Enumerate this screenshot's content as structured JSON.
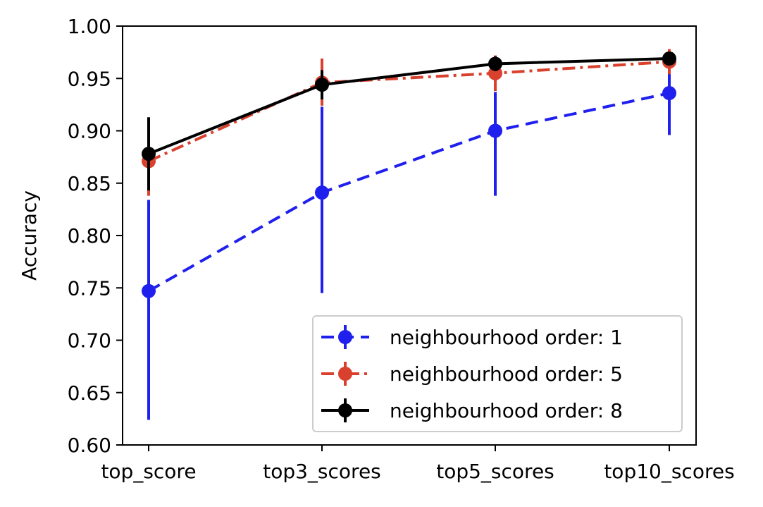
{
  "chart_data": {
    "type": "line",
    "title": "",
    "xlabel": "",
    "ylabel": "Accuracy",
    "categories": [
      "top_score",
      "top3_scores",
      "top5_scores",
      "top10_scores"
    ],
    "ylim": [
      0.6,
      1.0
    ],
    "yticks": [
      "0.60",
      "0.65",
      "0.70",
      "0.75",
      "0.80",
      "0.85",
      "0.90",
      "0.95",
      "1.00"
    ],
    "grid": false,
    "legend_position": "lower-right",
    "series": [
      {
        "name": "neighbourhood order: 1",
        "color": "#1f1fee",
        "linestyle": "dashed",
        "values": [
          0.747,
          0.841,
          0.9,
          0.936
        ],
        "err_low": [
          0.624,
          0.745,
          0.838,
          0.896
        ],
        "err_high": [
          0.834,
          0.923,
          0.937,
          0.956
        ]
      },
      {
        "name": "neighbourhood order: 5",
        "color": "#d9402e",
        "linestyle": "dashdot",
        "values": [
          0.871,
          0.946,
          0.955,
          0.966
        ],
        "err_low": [
          0.838,
          0.924,
          0.938,
          0.954
        ],
        "err_high": [
          0.904,
          0.969,
          0.972,
          0.978
        ]
      },
      {
        "name": "neighbourhood order: 8",
        "color": "#000000",
        "linestyle": "solid",
        "values": [
          0.878,
          0.944,
          0.964,
          0.969
        ],
        "err_low": [
          0.843,
          0.93,
          0.957,
          0.963
        ],
        "err_high": [
          0.913,
          0.958,
          0.971,
          0.975
        ]
      }
    ]
  }
}
